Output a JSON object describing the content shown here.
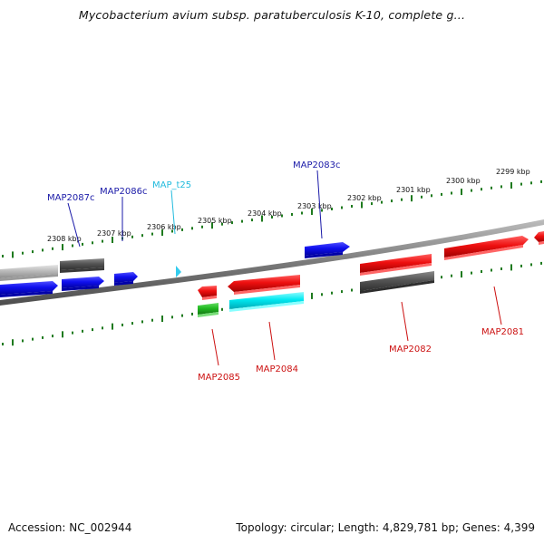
{
  "title": "Mycobacterium avium subsp. paratuberculosis K-10, complete g...",
  "footer": {
    "accession": "Accession: NC_002944",
    "summary": "Topology: circular; Length: 4,829,781 bp; Genes: 4,399"
  },
  "colors": {
    "tick": "#1e7a1e",
    "backbone": "#8a8a8a",
    "label_blue": "#1a1aa8",
    "label_cyan": "#22bbdd",
    "label_red": "#cc1111"
  },
  "ticks": [
    {
      "label": "2308 kbp"
    },
    {
      "label": "2307 kbp"
    },
    {
      "label": "2306 kbp"
    },
    {
      "label": "2305 kbp"
    },
    {
      "label": "2304 kbp"
    },
    {
      "label": "2303 kbp"
    },
    {
      "label": "2302 kbp"
    },
    {
      "label": "2301 kbp"
    },
    {
      "label": "2300 kbp"
    },
    {
      "label": "2299 kbp"
    }
  ],
  "labels": [
    {
      "id": "MAP2087c",
      "text": "MAP2087c",
      "color": "#1a1aa8"
    },
    {
      "id": "MAP2086c",
      "text": "MAP2086c",
      "color": "#1a1aa8"
    },
    {
      "id": "MAP_t25",
      "text": "MAP_t25",
      "color": "#22bbdd"
    },
    {
      "id": "MAP2083c",
      "text": "MAP2083c",
      "color": "#1a1aa8"
    },
    {
      "id": "MAP2085",
      "text": "MAP2085",
      "color": "#cc1111"
    },
    {
      "id": "MAP2084",
      "text": "MAP2084",
      "color": "#cc1111"
    },
    {
      "id": "MAP2082",
      "text": "MAP2082",
      "color": "#cc1111"
    },
    {
      "id": "MAP2081",
      "text": "MAP2081",
      "color": "#cc1111"
    }
  ]
}
